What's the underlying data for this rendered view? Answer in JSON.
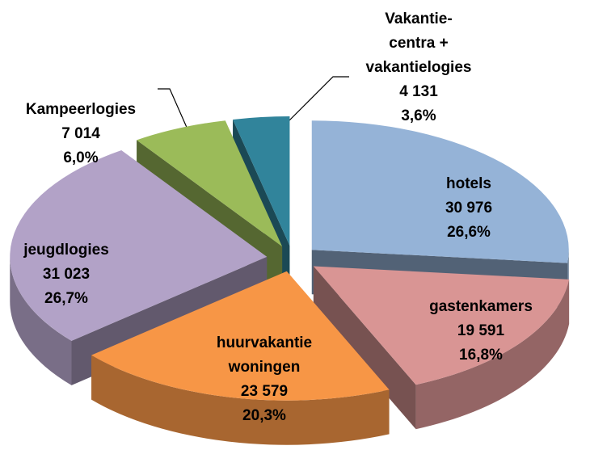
{
  "chart_data": {
    "type": "pie3d",
    "categories": [
      "hotels",
      "gastenkamers",
      "huurvakantie\nwoningen",
      "jeugdlogies",
      "Kampeerlogies",
      "Vakantie-\ncentra +\nvakantielogies"
    ],
    "values": [
      30976,
      19591,
      23579,
      31023,
      7014,
      4131
    ],
    "value_labels": [
      "30 976",
      "19 591",
      "23 579",
      "31 023",
      "7 014",
      "4 131"
    ],
    "percentages": [
      26.6,
      16.8,
      20.3,
      26.7,
      6.0,
      3.6
    ],
    "percentage_labels": [
      "26,6%",
      "16,8%",
      "20,3%",
      "26,7%",
      "6,0%",
      "3,6%"
    ],
    "colors": [
      "#95b3d7",
      "#d99594",
      "#f79646",
      "#b2a2c7",
      "#9bbb59",
      "#31849b"
    ]
  }
}
